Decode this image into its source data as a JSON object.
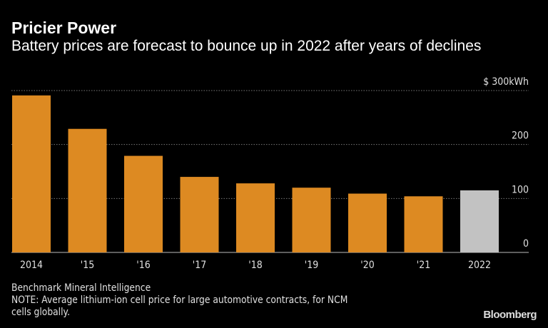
{
  "chart_data": {
    "type": "bar",
    "title": "Pricier Power",
    "subtitle": "Battery prices are forecast to bounce up in 2022 after years of declines",
    "categories": [
      "2014",
      "'15",
      "'16",
      "'17",
      "'18",
      "'19",
      "'20",
      "'21",
      "2022"
    ],
    "values": [
      291,
      229,
      179,
      140,
      128,
      120,
      109,
      104,
      115
    ],
    "forecast": [
      false,
      false,
      false,
      false,
      false,
      false,
      false,
      false,
      true
    ],
    "ylim": [
      0,
      300
    ],
    "yticks": [
      {
        "value": 0,
        "label": "0"
      },
      {
        "value": 100,
        "label": "100"
      },
      {
        "value": 200,
        "label": "200"
      },
      {
        "value": 300,
        "label": "$ 300kWh"
      }
    ],
    "grid": true,
    "colors": {
      "actual": "#dd8a22",
      "forecast": "#c2c2c2",
      "background": "#000000"
    }
  },
  "footer": {
    "source": "Benchmark Mineral Intelligence",
    "note_line1": "NOTE:  Average lithium-ion cell price for large automotive contracts, for NCM",
    "note_line2": "cells globally.",
    "brand": "Bloomberg"
  }
}
